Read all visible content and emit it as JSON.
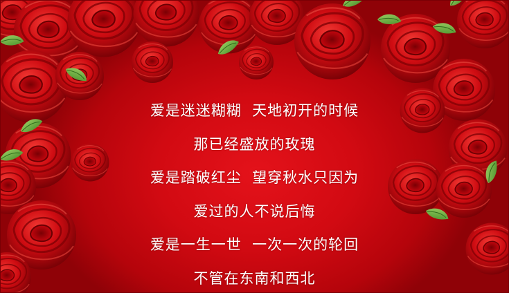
{
  "poem": {
    "lines": [
      "爱是迷迷糊糊  天地初开的时候",
      "那已经盛放的玫瑰",
      "爱是踏破红尘  望穿秋水只因为",
      "爱过的人不说后悔",
      "爱是一生一世  一次一次的轮回",
      "不管在东南和西北"
    ]
  },
  "colors": {
    "background": "#d20a12",
    "rose_dark": "#8a0006",
    "rose_mid": "#c4060e",
    "rose_light": "#ee2a2a",
    "leaf": "#5aa632",
    "text": "#ffffff"
  }
}
